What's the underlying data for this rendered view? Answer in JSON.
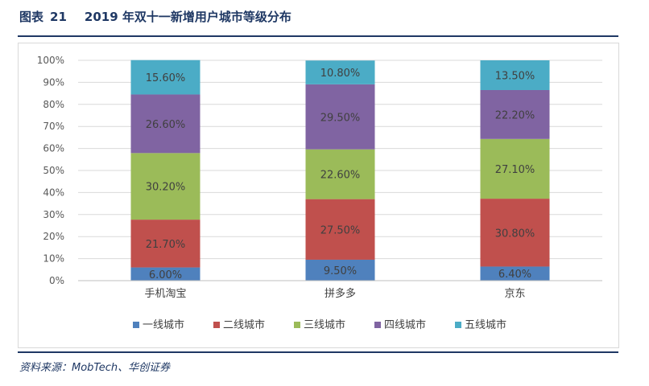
{
  "figure": {
    "label": "图表",
    "number": "21",
    "title": "2019 年双十一新增用户城市等级分布",
    "source": "资料来源：MobTech、华创证券"
  },
  "chart_data": {
    "type": "bar",
    "stacked": true,
    "categories": [
      "手机淘宝",
      "拼多多",
      "京东"
    ],
    "series": [
      {
        "name": "一线城市",
        "color": "#4f81bd",
        "values": [
          6.0,
          9.5,
          6.4
        ],
        "labels": [
          "6.00%",
          "9.50%",
          "6.40%"
        ]
      },
      {
        "name": "二线城市",
        "color": "#c0504d",
        "values": [
          21.7,
          27.5,
          30.8
        ],
        "labels": [
          "21.70%",
          "27.50%",
          "30.80%"
        ]
      },
      {
        "name": "三线城市",
        "color": "#9bbb59",
        "values": [
          30.2,
          22.6,
          27.1
        ],
        "labels": [
          "30.20%",
          "22.60%",
          "27.10%"
        ]
      },
      {
        "name": "四线城市",
        "color": "#8064a2",
        "values": [
          26.6,
          29.5,
          22.2
        ],
        "labels": [
          "26.60%",
          "29.50%",
          "22.20%"
        ]
      },
      {
        "name": "五线城市",
        "color": "#4bacc6",
        "values": [
          15.6,
          10.8,
          13.5
        ],
        "labels": [
          "15.60%",
          "10.80%",
          "13.50%"
        ]
      }
    ],
    "yticks": [
      "0%",
      "10%",
      "20%",
      "30%",
      "40%",
      "50%",
      "60%",
      "70%",
      "80%",
      "90%",
      "100%"
    ],
    "ylim": [
      0,
      100
    ],
    "grid": true,
    "legend": "bottom"
  }
}
